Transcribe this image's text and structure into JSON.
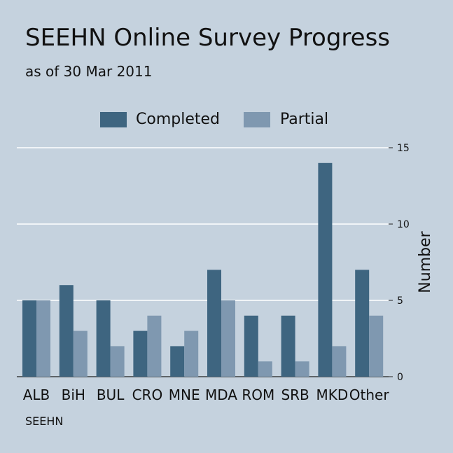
{
  "chart_data": {
    "type": "bar",
    "title": "SEEHN Online Survey Progress",
    "subtitle": "as of 30 Mar 2011",
    "ylabel": "Number",
    "xlabel": "",
    "note": "SEEHN",
    "categories": [
      "ALB",
      "BiH",
      "BUL",
      "CRO",
      "MNE",
      "MDA",
      "ROM",
      "SRB",
      "MKD",
      "Other"
    ],
    "series": [
      {
        "name": "Completed",
        "color": "#3e6580",
        "values": [
          5,
          6,
          5,
          3,
          2,
          7,
          4,
          4,
          14,
          7
        ]
      },
      {
        "name": "Partial",
        "color": "#7f98b0",
        "values": [
          5,
          3,
          2,
          4,
          3,
          5,
          1,
          1,
          2,
          4
        ]
      }
    ],
    "ylim": [
      0,
      15
    ],
    "yticks": [
      0,
      5,
      10,
      15
    ],
    "grid": true,
    "legend_position": "top",
    "y_axis_side": "right"
  }
}
